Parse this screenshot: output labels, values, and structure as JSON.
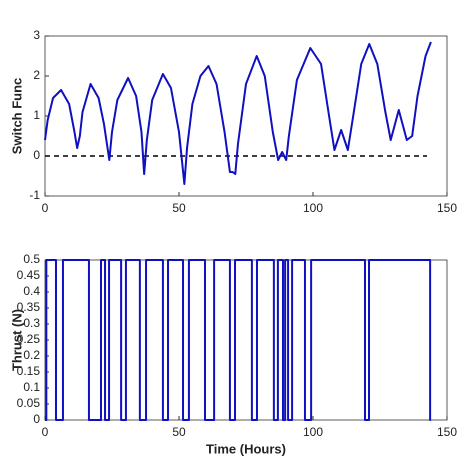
{
  "chart_data": [
    {
      "type": "line",
      "ylabel": "Switch Func",
      "xlim": [
        0,
        150
      ],
      "xticks": [
        0,
        50,
        100,
        150
      ],
      "ylim": [
        -1,
        3
      ],
      "yticks": [
        -1,
        0,
        1,
        2,
        3
      ],
      "hline": {
        "value": 0,
        "color": "#000000",
        "style": "dashed"
      },
      "series": [
        {
          "color": "#1010c0",
          "x": [
            0,
            1,
            3,
            6,
            9,
            11,
            12,
            13,
            14,
            17,
            20,
            22,
            24,
            25,
            27,
            31,
            34,
            36,
            37,
            38,
            40,
            44,
            47,
            50,
            52,
            53,
            55,
            58,
            61,
            64,
            67,
            69,
            70,
            71,
            72,
            75,
            79,
            82,
            85,
            87,
            88.5,
            90,
            91,
            94,
            99,
            103,
            106,
            108,
            110.5,
            113,
            115,
            118,
            121,
            124,
            127,
            129,
            132,
            135,
            137,
            139,
            142,
            144
          ],
          "values": [
            0.4,
            0.9,
            1.45,
            1.65,
            1.3,
            0.6,
            0.2,
            0.5,
            1.1,
            1.8,
            1.45,
            0.8,
            -0.1,
            0.6,
            1.4,
            1.95,
            1.5,
            0.6,
            -0.45,
            0.4,
            1.4,
            2.05,
            1.7,
            0.6,
            -0.7,
            0.2,
            1.3,
            2.0,
            2.25,
            1.8,
            0.6,
            -0.4,
            -0.4,
            -0.45,
            0.3,
            1.8,
            2.5,
            2.0,
            0.6,
            -0.1,
            0.1,
            -0.1,
            0.5,
            1.9,
            2.7,
            2.3,
            1.0,
            0.15,
            0.65,
            0.15,
            1.0,
            2.3,
            2.8,
            2.3,
            1.1,
            0.4,
            1.15,
            0.4,
            0.5,
            1.5,
            2.5,
            2.85
          ]
        }
      ]
    },
    {
      "type": "line",
      "xlabel": "Time (Hours)",
      "ylabel": "Thrust (N)",
      "xlim": [
        0,
        150
      ],
      "xticks": [
        0,
        50,
        100,
        150
      ],
      "ylim": [
        0,
        0.5
      ],
      "yticks": [
        0,
        0.05,
        0.1,
        0.15,
        0.2,
        0.25,
        0.3,
        0.35,
        0.4,
        0.45,
        0.5
      ],
      "series": [
        {
          "color": "#1010c0",
          "x": [
            0,
            0.5,
            0.5,
            4.1,
            4.1,
            6.7,
            6.7,
            16.4,
            16.4,
            20.9,
            20.9,
            22.4,
            22.4,
            23.9,
            23.9,
            28.4,
            28.4,
            30.2,
            30.2,
            35.4,
            35.4,
            37.7,
            37.7,
            44,
            44,
            45.9,
            45.9,
            51.5,
            51.5,
            53.7,
            53.7,
            59.7,
            59.7,
            63.1,
            63.1,
            69,
            69,
            70.9,
            70.9,
            77.2,
            77.2,
            79.1,
            79.1,
            85.4,
            85.4,
            86.9,
            86.9,
            88.8,
            88.8,
            89.6,
            89.6,
            90.7,
            90.7,
            92.2,
            92.2,
            97,
            97,
            99.3,
            99.3,
            119.4,
            119.4,
            120.9,
            120.9,
            143.7,
            143.7,
            144
          ],
          "values": [
            0,
            0,
            0.5,
            0.5,
            0,
            0,
            0.5,
            0.5,
            0,
            0,
            0.5,
            0.5,
            0,
            0,
            0.5,
            0.5,
            0,
            0,
            0.5,
            0.5,
            0,
            0,
            0.5,
            0.5,
            0,
            0,
            0.5,
            0.5,
            0,
            0,
            0.5,
            0.5,
            0,
            0,
            0.5,
            0.5,
            0,
            0,
            0.5,
            0.5,
            0,
            0,
            0.5,
            0.5,
            0,
            0,
            0.5,
            0.5,
            0,
            0,
            0.5,
            0.5,
            0,
            0,
            0.5,
            0.5,
            0,
            0,
            0.5,
            0.5,
            0,
            0,
            0.5,
            0.5,
            0,
            0
          ]
        }
      ]
    }
  ]
}
